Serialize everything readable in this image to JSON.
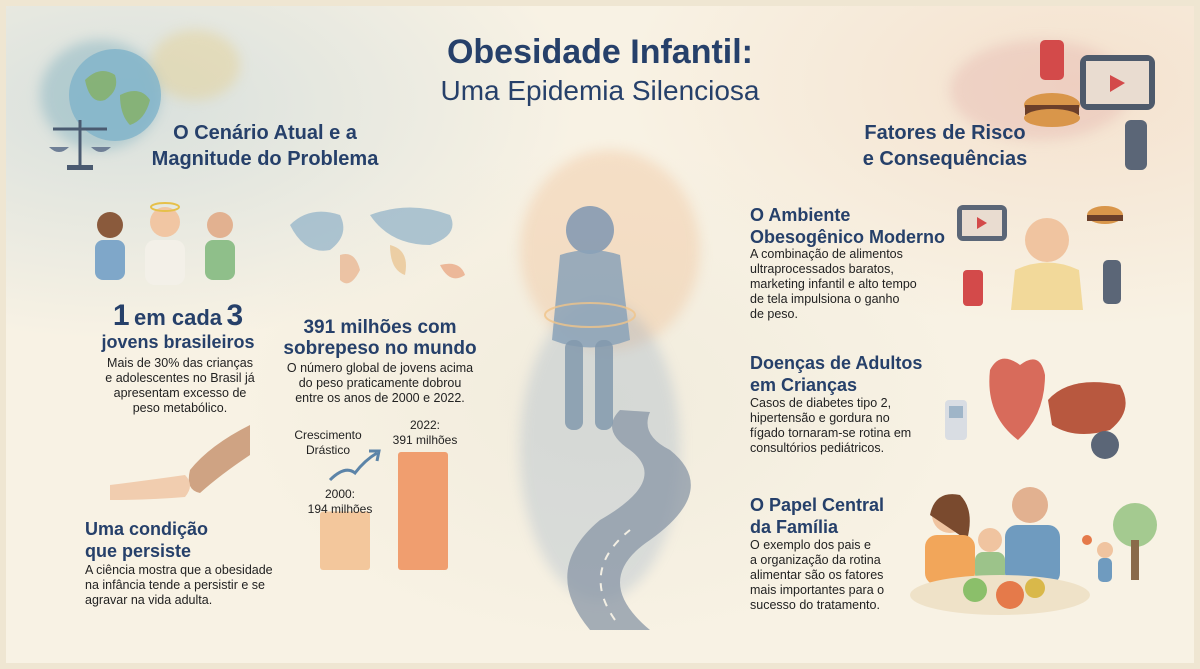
{
  "title": {
    "line1": "Obesidade Infantil:",
    "line2": "Uma Epidemia Silenciosa"
  },
  "left_header": {
    "line1": "O Cenário Atual e a",
    "line2": "Magnitude do Problema"
  },
  "right_header": {
    "line1": "Fatores de Risco",
    "line2": "e Consequências"
  },
  "stat_youth": {
    "n1": "1",
    "mid": "em cada",
    "n2": "3",
    "label": "jovens brasileiros",
    "text": [
      "Mais de 30% das crianças",
      "e adolescentes no Brasil já",
      "apresentam excesso de",
      "peso metabólico."
    ]
  },
  "stat_world": {
    "title1": "391 milhões com",
    "title2": "sobrepeso no mundo",
    "text": [
      "O número global de jovens acima",
      "do peso praticamente dobrou",
      "entre os anos de 2000 e 2022."
    ]
  },
  "chart_data": {
    "type": "bar",
    "categories": [
      "2000",
      "2022"
    ],
    "values": [
      194,
      391
    ],
    "units": "milhões",
    "bar_labels": [
      [
        "2000:",
        "194 milhões"
      ],
      [
        "2022:",
        "391 milhões"
      ]
    ],
    "annotation": [
      "Crescimento",
      "Drástico"
    ],
    "colors": [
      "#f2c08f",
      "#ee8f5a"
    ]
  },
  "persist": {
    "title1": "Uma condição",
    "title2": "que persiste",
    "text": [
      "A ciência mostra que a obesidade",
      "na infância tende a persistir e se",
      "agravar na vida adulta."
    ]
  },
  "env": {
    "title1": "O Ambiente",
    "title2": "Obesogênico Moderno",
    "text": [
      "A combinação de alimentos",
      "ultraprocessados baratos,",
      "marketing infantil e alto tempo",
      "de tela impulsiona o ganho",
      "de peso."
    ]
  },
  "diseases": {
    "title1": "Doenças de Adultos",
    "title2": "em Crianças",
    "text": [
      "Casos de diabetes tipo 2,",
      "hipertensão e gordura no",
      "fígado tornaram-se rotina em",
      "consultórios pediátricos."
    ]
  },
  "family": {
    "title1": "O Papel Central",
    "title2": "da Família",
    "text": [
      "O exemplo dos pais e",
      "a organização da rotina",
      "alimentar são os fatores",
      "mais importantes para o",
      "sucesso do tratamento."
    ]
  },
  "colors": {
    "heading": "#26406a",
    "bar_light": "#f2c08f",
    "bar_dark": "#ee8f5a"
  }
}
